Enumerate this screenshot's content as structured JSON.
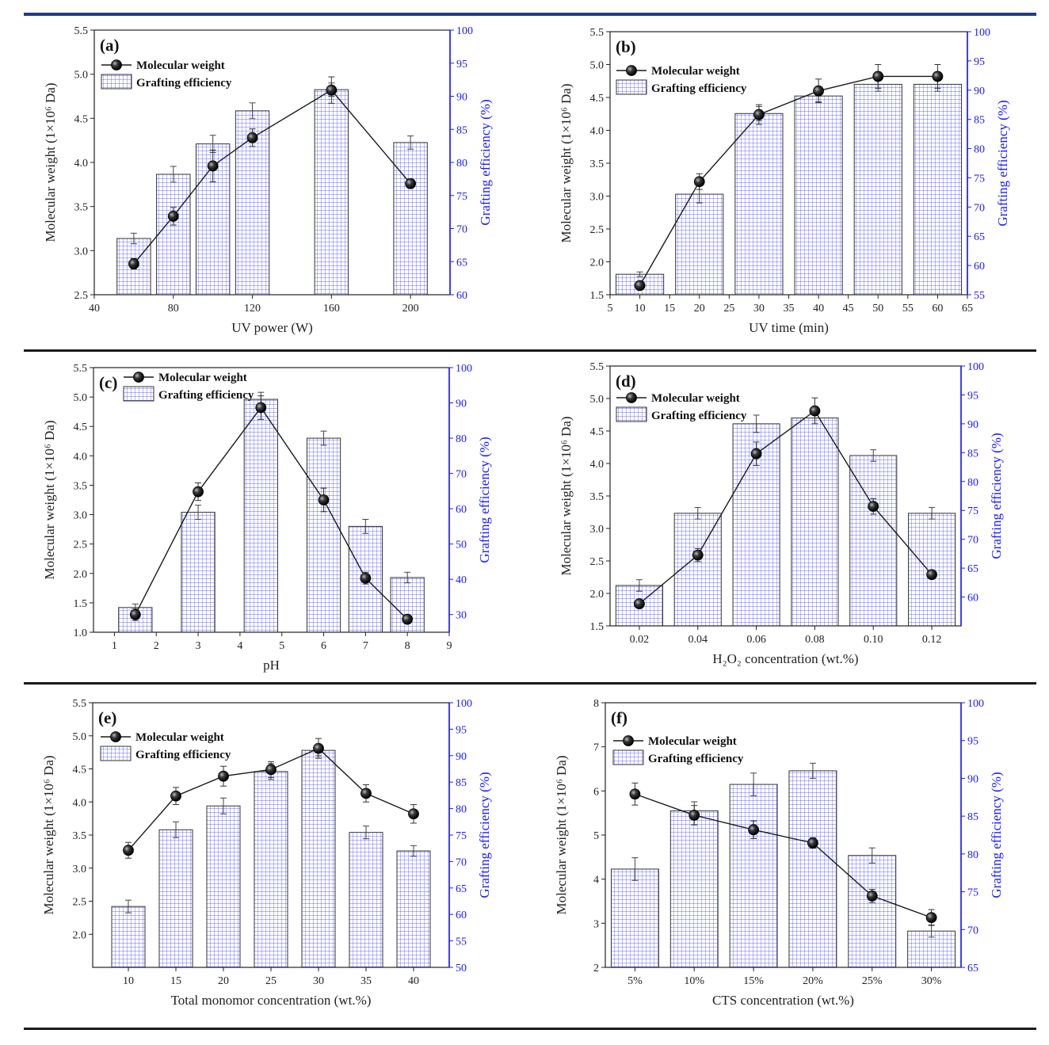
{
  "colors": {
    "top_rule": "#1f3b8a",
    "rule": "#1a1a1a",
    "grid_blue": "#3a3aff",
    "right_axis": "#1a1aff",
    "line": "#1a1a1a"
  },
  "chart_data": [
    {
      "id": "a",
      "type": "bar+line",
      "panel_label": "(a)",
      "xlabel": "UV power (W)",
      "ylabel_left": "Molecular weight (1×10⁶ Da)",
      "ylabel_right": "Grafting efficiency (%)",
      "xlim": [
        40,
        220
      ],
      "xticks": [
        40,
        80,
        120,
        160,
        200
      ],
      "ylim_left": [
        2.5,
        5.5
      ],
      "yticks_left": [
        2.5,
        3.0,
        3.5,
        4.0,
        4.5,
        5.0,
        5.5
      ],
      "ylim_right": [
        60,
        100
      ],
      "yticks_right": [
        60,
        65,
        70,
        75,
        80,
        85,
        90,
        95,
        100
      ],
      "legend": [
        "Molecular weight",
        "Grafting efficiency"
      ],
      "bar_width": 17,
      "x": [
        60,
        80,
        100,
        120,
        160,
        200
      ],
      "bars": [
        68.5,
        78.2,
        82.8,
        87.8,
        91.0,
        83.0
      ],
      "bar_err": [
        0.8,
        1.2,
        1.3,
        1.2,
        1.0,
        1.0
      ],
      "line": [
        2.85,
        3.39,
        3.96,
        4.28,
        4.82,
        3.76
      ],
      "line_err": [
        0.06,
        0.1,
        0.18,
        0.1,
        0.15,
        0.05
      ]
    },
    {
      "id": "b",
      "type": "bar+line",
      "panel_label": "(b)",
      "xlabel": "UV time (min)",
      "ylabel_left": "Molecular weight (1×10⁶ Da)",
      "ylabel_right": "Grafting efficiency (%)",
      "xlim": [
        5,
        65
      ],
      "xticks": [
        5,
        10,
        15,
        20,
        25,
        30,
        35,
        40,
        45,
        50,
        55,
        60,
        65
      ],
      "ylim_left": [
        1.5,
        5.5
      ],
      "yticks_left": [
        1.5,
        2.0,
        2.5,
        3.0,
        3.5,
        4.0,
        4.5,
        5.0,
        5.5
      ],
      "ylim_right": [
        55,
        100
      ],
      "yticks_right": [
        55,
        60,
        65,
        70,
        75,
        80,
        85,
        90,
        95,
        100
      ],
      "legend": [
        "Molecular weight",
        "Grafting efficiency"
      ],
      "bar_width": 8,
      "x": [
        10,
        20,
        30,
        40,
        50,
        60
      ],
      "bars": [
        58.5,
        72.2,
        86.0,
        89.0,
        91.0,
        91.0
      ],
      "bar_err": [
        0.4,
        1.5,
        1.2,
        1.0,
        1.2,
        1.2
      ],
      "line": [
        1.64,
        3.22,
        4.24,
        4.6,
        4.82,
        4.82
      ],
      "line_err": [
        0.06,
        0.12,
        0.15,
        0.18,
        0.18,
        0.18
      ]
    },
    {
      "id": "c",
      "type": "bar+line",
      "panel_label": "(c)",
      "xlabel": "pH",
      "ylabel_left": "Molecular weight (1×10⁶ Da)",
      "ylabel_right": "Grafting efficiency (%)",
      "xlim": [
        0.5,
        9
      ],
      "xticks": [
        1,
        2,
        3,
        4,
        5,
        6,
        7,
        8,
        9
      ],
      "ylim_left": [
        1.0,
        5.5
      ],
      "yticks_left": [
        1.0,
        1.5,
        2.0,
        2.5,
        3.0,
        3.5,
        4.0,
        4.5,
        5.0,
        5.5
      ],
      "ylim_right": [
        25,
        100
      ],
      "yticks_right": [
        30,
        40,
        50,
        60,
        70,
        80,
        90,
        100
      ],
      "legend": [
        "Molecular weight",
        "Grafting efficiency"
      ],
      "bar_width": 0.8,
      "x": [
        1.5,
        3,
        4.5,
        6,
        7,
        8
      ],
      "bars": [
        32,
        59,
        91,
        80,
        55,
        40.5
      ],
      "bar_err": [
        1.0,
        2.0,
        2.0,
        2.0,
        2.0,
        1.5
      ],
      "line": [
        1.3,
        3.39,
        4.82,
        3.25,
        1.92,
        1.22
      ],
      "line_err": [
        0.1,
        0.15,
        0.2,
        0.2,
        0.1,
        0.05
      ]
    },
    {
      "id": "d",
      "type": "bar+line",
      "panel_label": "(d)",
      "xlabel": "H₂O₂ concentration (wt.%)",
      "ylabel_left": "Molecular weight (1×10⁶ Da)",
      "ylabel_right": "Grafting efficiency (%)",
      "xlim": [
        0.01,
        0.13
      ],
      "xticks": [
        0.02,
        0.04,
        0.06,
        0.08,
        0.1,
        0.12
      ],
      "xtick_labels": [
        "0.02",
        "0.04",
        "0.06",
        "0.08",
        "0.10",
        "0.12"
      ],
      "ylim_left": [
        1.5,
        5.5
      ],
      "yticks_left": [
        1.5,
        2.0,
        2.5,
        3.0,
        3.5,
        4.0,
        4.5,
        5.0,
        5.5
      ],
      "ylim_right": [
        55,
        100
      ],
      "yticks_right": [
        60,
        65,
        70,
        75,
        80,
        85,
        90,
        95,
        100
      ],
      "legend": [
        "Molecular weight",
        "Grafting efficiency"
      ],
      "bar_width": 0.016,
      "x": [
        0.02,
        0.04,
        0.06,
        0.08,
        0.1,
        0.12
      ],
      "bars": [
        62,
        74.5,
        90,
        91,
        84.5,
        74.5
      ],
      "bar_err": [
        1.0,
        1.0,
        1.5,
        1.0,
        1.0,
        1.0
      ],
      "line": [
        1.84,
        2.59,
        4.15,
        4.81,
        3.34,
        2.29
      ],
      "line_err": [
        0.06,
        0.1,
        0.18,
        0.2,
        0.12,
        0.06
      ]
    },
    {
      "id": "e",
      "type": "bar+line",
      "panel_label": "(e)",
      "xlabel": "Total monomor concentration (wt.%)",
      "ylabel_left": "Molecular weight (1×10⁶ Da)",
      "ylabel_right": "Grafting efficiency (%)",
      "xlim": [
        6.25,
        43.75
      ],
      "xticks": [
        10,
        15,
        20,
        25,
        30,
        35,
        40
      ],
      "ylim_left": [
        1.5,
        5.5
      ],
      "yticks_left": [
        2.0,
        2.5,
        3.0,
        3.5,
        4.0,
        4.5,
        5.0,
        5.5
      ],
      "ylim_right": [
        50,
        100
      ],
      "yticks_right": [
        50,
        55,
        60,
        65,
        70,
        75,
        80,
        85,
        90,
        95,
        100
      ],
      "legend": [
        "Molecular weight",
        "Grafting efficiency"
      ],
      "bar_width": 3.5,
      "x": [
        10,
        15,
        20,
        25,
        30,
        35,
        40
      ],
      "bars": [
        61.5,
        76,
        80.5,
        87,
        91,
        75.5,
        72
      ],
      "bar_err": [
        1.2,
        1.5,
        1.5,
        1.5,
        1.0,
        1.2,
        1.0
      ],
      "line": [
        3.27,
        4.09,
        4.39,
        4.49,
        4.81,
        4.13,
        3.82
      ],
      "line_err": [
        0.12,
        0.13,
        0.15,
        0.12,
        0.15,
        0.13,
        0.14
      ]
    },
    {
      "id": "f",
      "type": "bar+line",
      "panel_label": "(f)",
      "xlabel": "CTS concentration (wt.%)",
      "ylabel_left": "Molecular weight (1×10⁶ Da)",
      "ylabel_right": "Grafting efficiency (%)",
      "xlim": [
        0.5,
        6.5
      ],
      "xticks": [
        1,
        2,
        3,
        4,
        5,
        6
      ],
      "xtick_labels": [
        "5%",
        "10%",
        "15%",
        "20%",
        "25%",
        "30%"
      ],
      "ylim_left": [
        2,
        8
      ],
      "yticks_left": [
        2,
        3,
        4,
        5,
        6,
        7,
        8
      ],
      "ylim_right": [
        65,
        100
      ],
      "yticks_right": [
        65,
        70,
        75,
        80,
        85,
        90,
        95,
        100
      ],
      "legend": [
        "Molecular weight",
        "Grafting efficiency"
      ],
      "bar_width": 0.8,
      "x": [
        1,
        2,
        3,
        4,
        5,
        6
      ],
      "bars": [
        78,
        85.7,
        89.2,
        91,
        79.8,
        69.8
      ],
      "bar_err": [
        1.5,
        1.2,
        1.5,
        1.0,
        1.0,
        0.8
      ],
      "line": [
        5.93,
        5.45,
        5.12,
        4.82,
        3.62,
        3.13
      ],
      "line_err": [
        0.25,
        0.22,
        0.2,
        0.12,
        0.15,
        0.18
      ]
    }
  ]
}
